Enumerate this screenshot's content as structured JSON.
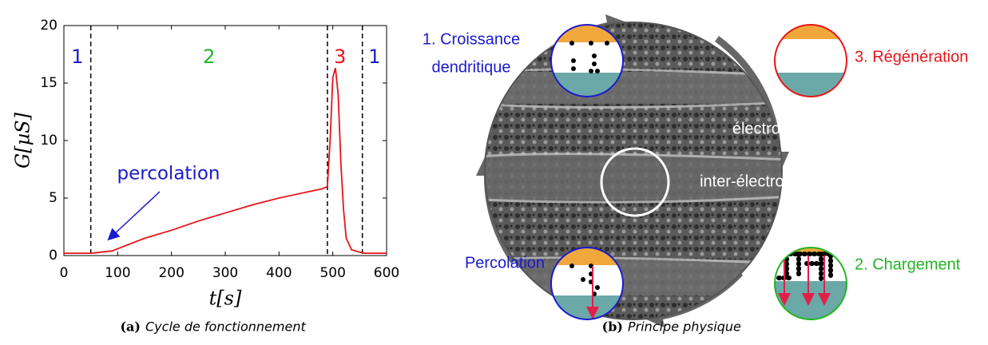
{
  "chart_data": {
    "type": "line",
    "xlabel": "t[s]",
    "ylabel": "G[µS]",
    "x": [
      0,
      50,
      90,
      100,
      150,
      200,
      250,
      300,
      350,
      400,
      450,
      480,
      490,
      495,
      500,
      505,
      510,
      515,
      520,
      525,
      535,
      550,
      560,
      600
    ],
    "values": [
      0.2,
      0.2,
      0.4,
      0.6,
      1.5,
      2.2,
      3.0,
      3.7,
      4.4,
      5.0,
      5.5,
      5.8,
      6.0,
      10,
      15.5,
      16.3,
      14,
      8,
      4,
      1.5,
      0.5,
      0.3,
      0.2,
      0.2
    ],
    "color": "#e8141a",
    "xlim": [
      0,
      600
    ],
    "xticks": [
      0,
      100,
      200,
      300,
      400,
      500,
      600
    ],
    "ylim": [
      0,
      20
    ],
    "yticks": [
      0,
      5,
      10,
      15,
      20
    ],
    "vlines": [
      50,
      490,
      555
    ],
    "regions": [
      {
        "label": "1",
        "color": "#1a1acd"
      },
      {
        "label": "2",
        "color": "#22b422"
      },
      {
        "label": "3",
        "color": "#e8141a"
      },
      {
        "label": "1",
        "color": "#1a1acd"
      }
    ],
    "annotation": "percolation",
    "caption_label": "(a)",
    "caption": "Cycle de fonctionnement"
  },
  "diagram": {
    "labels": {
      "croissance_1": "1. Croissance",
      "croissance_2": "dendritique",
      "regeneration": "3. Régénération",
      "electrode": "électrode",
      "inter_electrode": "inter-électrode",
      "percolation": "Percolation",
      "chargement": "2. Chargement"
    },
    "caption_label": "(b)",
    "caption": "Principe physique"
  }
}
